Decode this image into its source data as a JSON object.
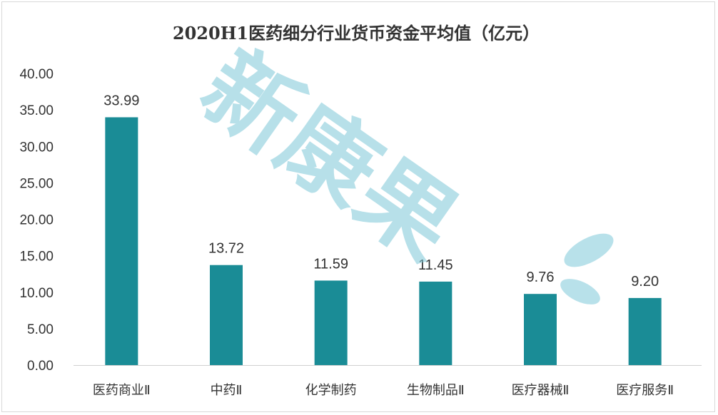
{
  "chart_data": {
    "type": "bar",
    "title": "2020H1医药细分行业货币资金平均值（亿元）",
    "categories": [
      "医药商业Ⅱ",
      "中药Ⅱ",
      "化学制药",
      "生物制品Ⅱ",
      "医疗器械Ⅱ",
      "医疗服务Ⅱ"
    ],
    "values": [
      33.99,
      13.72,
      11.59,
      11.45,
      9.76,
      9.2
    ],
    "data_labels": [
      "33.99",
      "13.72",
      "11.59",
      "11.45",
      "9.76",
      "9.20"
    ],
    "yticks": [
      "0.00",
      "5.00",
      "10.00",
      "15.00",
      "20.00",
      "25.00",
      "30.00",
      "35.00",
      "40.00"
    ],
    "ylim": [
      0,
      40
    ],
    "xlabel": "",
    "ylabel": "",
    "grid": false,
    "bar_color": "#1a8c96",
    "watermark": "新康果"
  }
}
